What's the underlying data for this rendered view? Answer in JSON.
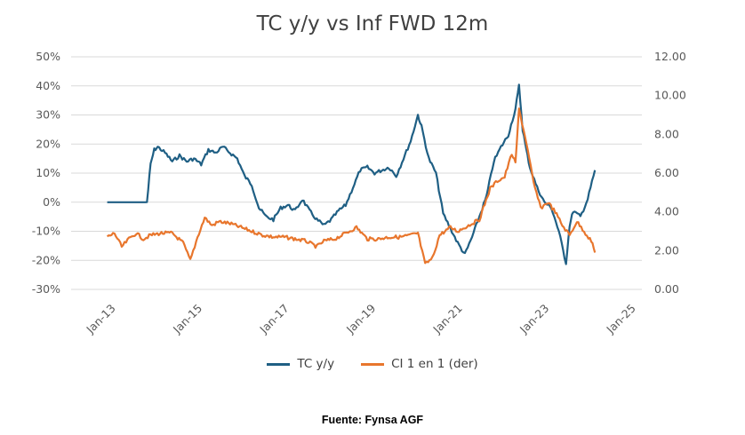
{
  "chart_data": {
    "type": "line",
    "title": "TC y/y vs Inf FWD 12m",
    "xlabel": "",
    "ylabel": "",
    "y2label": "",
    "x_ticks": [
      "Jan-13",
      "Jan-15",
      "Jan-17",
      "Jan-19",
      "Jan-21",
      "Jan-23",
      "Jan-25"
    ],
    "y_ticks": [
      "50%",
      "40%",
      "30%",
      "20%",
      "10%",
      "0%",
      "-10%",
      "-20%",
      "-30%"
    ],
    "y2_ticks": [
      "12.00",
      "10.00",
      "8.00",
      "6.00",
      "4.00",
      "2.00",
      "0.00"
    ],
    "ylim": [
      -0.3,
      0.5
    ],
    "y2lim": [
      0,
      12
    ],
    "xlim": [
      "2012-03",
      "2025-05"
    ],
    "grid": true,
    "legend_position": "bottom",
    "series": [
      {
        "name": "TC y/y",
        "color": "#1f5f84",
        "axis": "left",
        "x": [
          "2013-01",
          "2013-06",
          "2013-12",
          "2014-01",
          "2014-02",
          "2014-03",
          "2014-05",
          "2014-07",
          "2014-09",
          "2014-11",
          "2015-01",
          "2015-03",
          "2015-05",
          "2015-07",
          "2015-09",
          "2015-11",
          "2016-01",
          "2016-03",
          "2016-05",
          "2016-07",
          "2016-09",
          "2016-11",
          "2017-01",
          "2017-03",
          "2017-05",
          "2017-07",
          "2017-09",
          "2017-11",
          "2018-01",
          "2018-03",
          "2018-05",
          "2018-07",
          "2018-09",
          "2018-11",
          "2019-01",
          "2019-03",
          "2019-05",
          "2019-07",
          "2019-09",
          "2019-11",
          "2020-01",
          "2020-03",
          "2020-04",
          "2020-06",
          "2020-08",
          "2020-10",
          "2020-12",
          "2021-02",
          "2021-04",
          "2021-06",
          "2021-08",
          "2021-10",
          "2021-12",
          "2022-02",
          "2022-04",
          "2022-06",
          "2022-07",
          "2022-08",
          "2022-09",
          "2022-10",
          "2022-12",
          "2023-02",
          "2023-04",
          "2023-06",
          "2023-08",
          "2023-09",
          "2023-10",
          "2023-12",
          "2024-02",
          "2024-04"
        ],
        "values": [
          0.0,
          0.0,
          0.0,
          0.13,
          0.18,
          0.19,
          0.17,
          0.14,
          0.16,
          0.14,
          0.15,
          0.13,
          0.18,
          0.17,
          0.19,
          0.17,
          0.15,
          0.09,
          0.06,
          -0.02,
          -0.05,
          -0.06,
          -0.02,
          -0.01,
          -0.03,
          0.01,
          -0.03,
          -0.06,
          -0.08,
          -0.06,
          -0.03,
          -0.01,
          0.05,
          0.11,
          0.12,
          0.1,
          0.11,
          0.12,
          0.09,
          0.15,
          0.21,
          0.3,
          0.26,
          0.15,
          0.1,
          -0.04,
          -0.09,
          -0.14,
          -0.18,
          -0.12,
          -0.05,
          0.02,
          0.14,
          0.19,
          0.23,
          0.32,
          0.4,
          0.25,
          0.18,
          0.12,
          0.05,
          0.0,
          -0.02,
          -0.1,
          -0.21,
          -0.08,
          -0.03,
          -0.05,
          0.01,
          0.11
        ]
      },
      {
        "name": "CI 1 en 1 (der)",
        "color": "#e8762d",
        "axis": "right",
        "x": [
          "2013-01",
          "2013-03",
          "2013-05",
          "2013-07",
          "2013-09",
          "2013-11",
          "2014-01",
          "2014-04",
          "2014-07",
          "2014-10",
          "2014-12",
          "2015-02",
          "2015-04",
          "2015-06",
          "2015-08",
          "2015-11",
          "2016-02",
          "2016-05",
          "2016-08",
          "2016-11",
          "2017-02",
          "2017-05",
          "2017-08",
          "2017-11",
          "2018-01",
          "2018-04",
          "2018-07",
          "2018-10",
          "2019-01",
          "2019-04",
          "2019-07",
          "2019-10",
          "2020-01",
          "2020-03",
          "2020-05",
          "2020-07",
          "2020-09",
          "2020-12",
          "2021-02",
          "2021-05",
          "2021-08",
          "2021-11",
          "2022-01",
          "2022-03",
          "2022-05",
          "2022-06",
          "2022-07",
          "2022-09",
          "2022-11",
          "2023-01",
          "2023-03",
          "2023-05",
          "2023-07",
          "2023-09",
          "2023-11",
          "2024-01",
          "2024-03",
          "2024-04"
        ],
        "values": [
          2.7,
          2.9,
          2.2,
          2.6,
          2.9,
          2.6,
          2.8,
          2.9,
          2.9,
          2.4,
          1.5,
          2.7,
          3.7,
          3.3,
          3.5,
          3.4,
          3.2,
          3.0,
          2.8,
          2.7,
          2.7,
          2.6,
          2.5,
          2.2,
          2.5,
          2.6,
          2.9,
          3.2,
          2.6,
          2.6,
          2.7,
          2.7,
          2.8,
          2.9,
          1.3,
          1.6,
          2.8,
          3.2,
          3.0,
          3.3,
          3.6,
          5.2,
          5.6,
          5.8,
          7.0,
          6.5,
          9.3,
          7.6,
          5.5,
          4.2,
          4.5,
          4.0,
          3.3,
          2.8,
          3.5,
          3.0,
          2.5,
          1.9
        ]
      }
    ]
  },
  "source_note": "Fuente: Fynsa AGF"
}
